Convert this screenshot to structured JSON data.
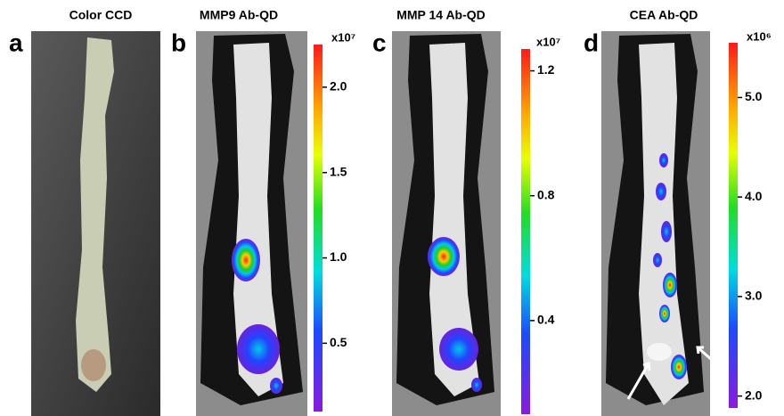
{
  "panels": [
    {
      "letter": "a",
      "title": "Color CCD"
    },
    {
      "letter": "b",
      "title": "MMP9 Ab-QD",
      "colorbar": {
        "multiplier": "x10⁷",
        "lim": [
          0.1,
          2.25
        ],
        "ticks": [
          {
            "value": 2,
            "label": "2.0"
          },
          1.5,
          {
            "value": 1,
            "label": "1.0"
          },
          0.5
        ]
      }
    },
    {
      "letter": "c",
      "title": "MMP 14 Ab-QD",
      "colorbar": {
        "multiplier": "x10⁷",
        "lim": [
          0.1,
          1.27
        ],
        "ticks": [
          1.2,
          0.8,
          0.4
        ]
      }
    },
    {
      "letter": "d",
      "title": "CEA Ab-QD",
      "colorbar": {
        "multiplier": "x10⁶",
        "lim": [
          1.88,
          5.55
        ],
        "ticks": [
          {
            "value": 5,
            "label": "5.0"
          },
          {
            "value": 4,
            "label": "4.0"
          },
          {
            "value": 3,
            "label": "3.0"
          },
          {
            "value": 2,
            "label": "2.0"
          }
        ]
      }
    }
  ]
}
